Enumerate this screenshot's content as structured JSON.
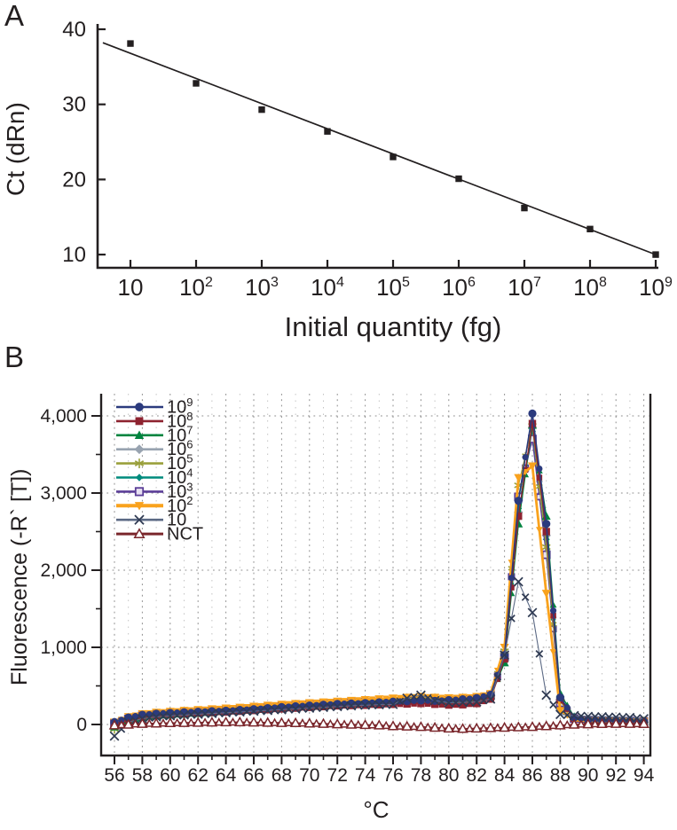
{
  "background": "#ffffff",
  "text_color": "#231f20",
  "axis_color": "#231f20",
  "grid_color_major": "#8c8c8c",
  "grid_color_minor": "#bdbdbd",
  "chart_data": [
    {
      "id": "standard-curve",
      "type": "scatter",
      "panel_letter": "A",
      "xlabel": "Initial quantity (fg)",
      "ylabel": "Ct (dRn)",
      "x_scale": "log10",
      "y_ticks": [
        40,
        30,
        20,
        10
      ],
      "ylim": [
        7.5,
        41.5
      ],
      "x_tick_labels": [
        {
          "base": "10",
          "sup": ""
        },
        {
          "base": "10",
          "sup": "2"
        },
        {
          "base": "10",
          "sup": "3"
        },
        {
          "base": "10",
          "sup": "4"
        },
        {
          "base": "10",
          "sup": "5"
        },
        {
          "base": "10",
          "sup": "6"
        },
        {
          "base": "10",
          "sup": "7"
        },
        {
          "base": "10",
          "sup": "8"
        },
        {
          "base": "10",
          "sup": "9"
        }
      ],
      "x_exponents": [
        1,
        2,
        3,
        4,
        5,
        6,
        7,
        8,
        9
      ],
      "ct_values": [
        38.1,
        32.8,
        29.3,
        26.4,
        23.0,
        20.1,
        16.2,
        13.4,
        10.0
      ],
      "trendline": {
        "ct_at_exp1": 36.8,
        "slope_per_decade": -3.35,
        "exp_start": 0.58,
        "exp_end": 9.04
      },
      "marker": "square",
      "marker_color": "#231f20"
    },
    {
      "id": "melting-curve",
      "type": "line",
      "panel_letter": "B",
      "xlabel": "°C",
      "ylabel": "Fluorescence (-R` [T])",
      "x_start": 56,
      "x_step": 1,
      "xlim": [
        55.1,
        94.5
      ],
      "ylim": [
        -400,
        4300
      ],
      "x_ticks": [
        56,
        58,
        60,
        62,
        64,
        66,
        68,
        70,
        72,
        74,
        76,
        78,
        80,
        82,
        84,
        86,
        88,
        90,
        92,
        94
      ],
      "y_ticks": [
        0,
        1000,
        2000,
        3000,
        4000
      ],
      "y_tick_labels": [
        "0",
        "1,000",
        "2,000",
        "3,000",
        "4,000"
      ],
      "grid": "dotted",
      "legend_position": "top-left",
      "draw_order": [
        "1e6",
        "1e4",
        "1e3",
        "1e5",
        "1e7",
        "1e8",
        "1e2",
        "1e9",
        "10",
        "NCT"
      ],
      "series": [
        {
          "id": "1e9",
          "label_base": "10",
          "label_sup": "9",
          "color": "#2b3a7d",
          "marker": "circle",
          "line_width": 1.6,
          "values": [
            30,
            90,
            125,
            140,
            150,
            158,
            165,
            172,
            178,
            188,
            198,
            212,
            226,
            236,
            246,
            256,
            266,
            272,
            278,
            288,
            296,
            302,
            312,
            306,
            316,
            326,
            342,
            385,
            900,
            2900,
            4030,
            2600,
            350,
            90,
            62,
            56,
            50,
            46,
            40
          ]
        },
        {
          "id": "1e8",
          "label_base": "10",
          "label_sup": "8",
          "color": "#8e2330",
          "marker": "square",
          "line_width": 1.4,
          "values": [
            10,
            70,
            110,
            125,
            135,
            142,
            150,
            156,
            162,
            172,
            182,
            192,
            202,
            212,
            222,
            232,
            242,
            246,
            250,
            256,
            262,
            266,
            272,
            262,
            252,
            256,
            272,
            330,
            850,
            2700,
            3900,
            2500,
            320,
            80,
            56,
            50,
            46,
            44,
            40
          ]
        },
        {
          "id": "1e7",
          "label_base": "10",
          "label_sup": "7",
          "color": "#00843f",
          "marker": "triangle-up",
          "line_width": 1.4,
          "values": [
            -30,
            50,
            90,
            110,
            120,
            132,
            142,
            152,
            162,
            172,
            182,
            196,
            212,
            226,
            240,
            252,
            262,
            272,
            282,
            292,
            302,
            312,
            316,
            302,
            312,
            322,
            332,
            372,
            800,
            2600,
            3880,
            2700,
            400,
            100,
            60,
            54,
            50,
            46,
            40
          ]
        },
        {
          "id": "1e6",
          "label_base": "10",
          "label_sup": "6",
          "color": "#98a3b0",
          "marker": "diamond",
          "line_width": 1.4,
          "values": [
            20,
            75,
            110,
            124,
            134,
            145,
            155,
            162,
            172,
            182,
            192,
            202,
            216,
            226,
            236,
            246,
            256,
            266,
            276,
            286,
            296,
            306,
            312,
            306,
            300,
            312,
            326,
            362,
            820,
            2750,
            3850,
            2450,
            330,
            85,
            60,
            54,
            50,
            46,
            40
          ]
        },
        {
          "id": "1e5",
          "label_base": "10",
          "label_sup": "5",
          "color": "#9aa03c",
          "marker": "star",
          "line_width": 1.3,
          "values": [
            -60,
            60,
            105,
            125,
            140,
            152,
            162,
            172,
            182,
            192,
            202,
            216,
            230,
            242,
            252,
            262,
            272,
            282,
            290,
            296,
            306,
            316,
            322,
            312,
            316,
            322,
            336,
            382,
            950,
            3100,
            3870,
            2300,
            300,
            80,
            56,
            50,
            46,
            44,
            40
          ]
        },
        {
          "id": "1e4",
          "label_base": "10",
          "label_sup": "4",
          "color": "#008b7d",
          "marker": "diamond-small",
          "line_width": 1.3,
          "values": [
            0,
            65,
            100,
            118,
            130,
            142,
            152,
            162,
            172,
            182,
            192,
            202,
            212,
            222,
            236,
            246,
            256,
            266,
            272,
            282,
            292,
            302,
            312,
            302,
            306,
            316,
            332,
            372,
            850,
            2800,
            3800,
            2400,
            320,
            85,
            60,
            54,
            50,
            46,
            40
          ]
        },
        {
          "id": "1e3",
          "label_base": "10",
          "label_sup": "3",
          "color": "#5b3e97",
          "marker": "square-open",
          "marker_fill": "#e8e2f2",
          "line_width": 1.4,
          "values": [
            15,
            70,
            110,
            128,
            140,
            152,
            162,
            172,
            182,
            192,
            206,
            216,
            232,
            242,
            252,
            262,
            272,
            282,
            286,
            292,
            302,
            312,
            316,
            306,
            312,
            322,
            336,
            376,
            880,
            2950,
            3700,
            2200,
            280,
            76,
            56,
            50,
            46,
            44,
            40
          ]
        },
        {
          "id": "1e2",
          "label_base": "10",
          "label_sup": "2",
          "color": "#f9a21d",
          "marker": "triangle-down",
          "line_width": 2.8,
          "values": [
            30,
            100,
            140,
            158,
            170,
            182,
            192,
            202,
            212,
            222,
            236,
            248,
            262,
            272,
            282,
            292,
            302,
            312,
            322,
            332,
            342,
            352,
            365,
            352,
            346,
            352,
            362,
            400,
            1000,
            3200,
            3350,
            1700,
            180,
            55,
            48,
            45,
            44,
            42,
            40
          ]
        },
        {
          "id": "10",
          "label_base": "10",
          "label_sup": "",
          "color": "#5c6a85",
          "marker": "x",
          "marker_color": "#2f3a52",
          "line_width": 1.1,
          "values": [
            -150,
            30,
            75,
            98,
            112,
            122,
            132,
            142,
            152,
            162,
            172,
            182,
            192,
            202,
            212,
            222,
            232,
            242,
            250,
            256,
            260,
            340,
            380,
            310,
            280,
            285,
            292,
            330,
            900,
            1850,
            1450,
            380,
            130,
            115,
            105,
            100,
            95,
            90,
            75
          ]
        },
        {
          "id": "NCT",
          "label_base": "NCT",
          "label_sup": "",
          "color": "#7a262b",
          "marker": "triangle-open",
          "marker_fill": "#ffffff",
          "line_width": 1.6,
          "values": [
            -10,
            0,
            10,
            15,
            20,
            22,
            25,
            28,
            30,
            30,
            28,
            25,
            22,
            20,
            15,
            10,
            5,
            0,
            -5,
            -10,
            -20,
            -25,
            -30,
            -40,
            -50,
            -55,
            -50,
            -45,
            -40,
            -35,
            -30,
            -20,
            -10,
            0,
            5,
            8,
            10,
            10,
            8
          ]
        }
      ]
    }
  ]
}
